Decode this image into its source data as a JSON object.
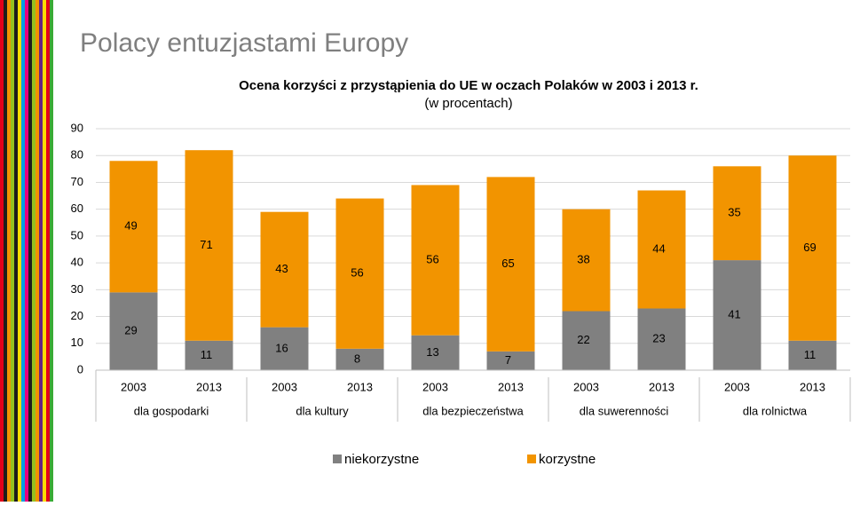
{
  "slide_title": "Polacy entuzjastami Europy",
  "chart_data": {
    "type": "stacked_bar",
    "title": "Ocena korzyści z przystąpienia do UE w oczach Polaków w 2003 i 2013 r.",
    "subtitle": "(w procentach)",
    "categories": [
      "2003",
      "2013",
      "2003",
      "2013",
      "2003",
      "2013",
      "2003",
      "2013",
      "2003",
      "2013"
    ],
    "groups": [
      "dla gospodarki",
      "dla kultury",
      "dla bezpieczeństwa",
      "dla suwerenności",
      "dla rolnictwa"
    ],
    "series": [
      {
        "name": "niekorzystne",
        "color": "#808080",
        "values": [
          29,
          11,
          16,
          8,
          13,
          7,
          22,
          23,
          41,
          11
        ]
      },
      {
        "name": "korzystne",
        "color": "#f29400",
        "values": [
          49,
          71,
          43,
          56,
          56,
          65,
          38,
          44,
          35,
          69
        ]
      }
    ],
    "ylim": [
      0,
      90
    ],
    "yticks": [
      0,
      10,
      20,
      30,
      40,
      50,
      60,
      70,
      80,
      90
    ],
    "grid": true
  }
}
